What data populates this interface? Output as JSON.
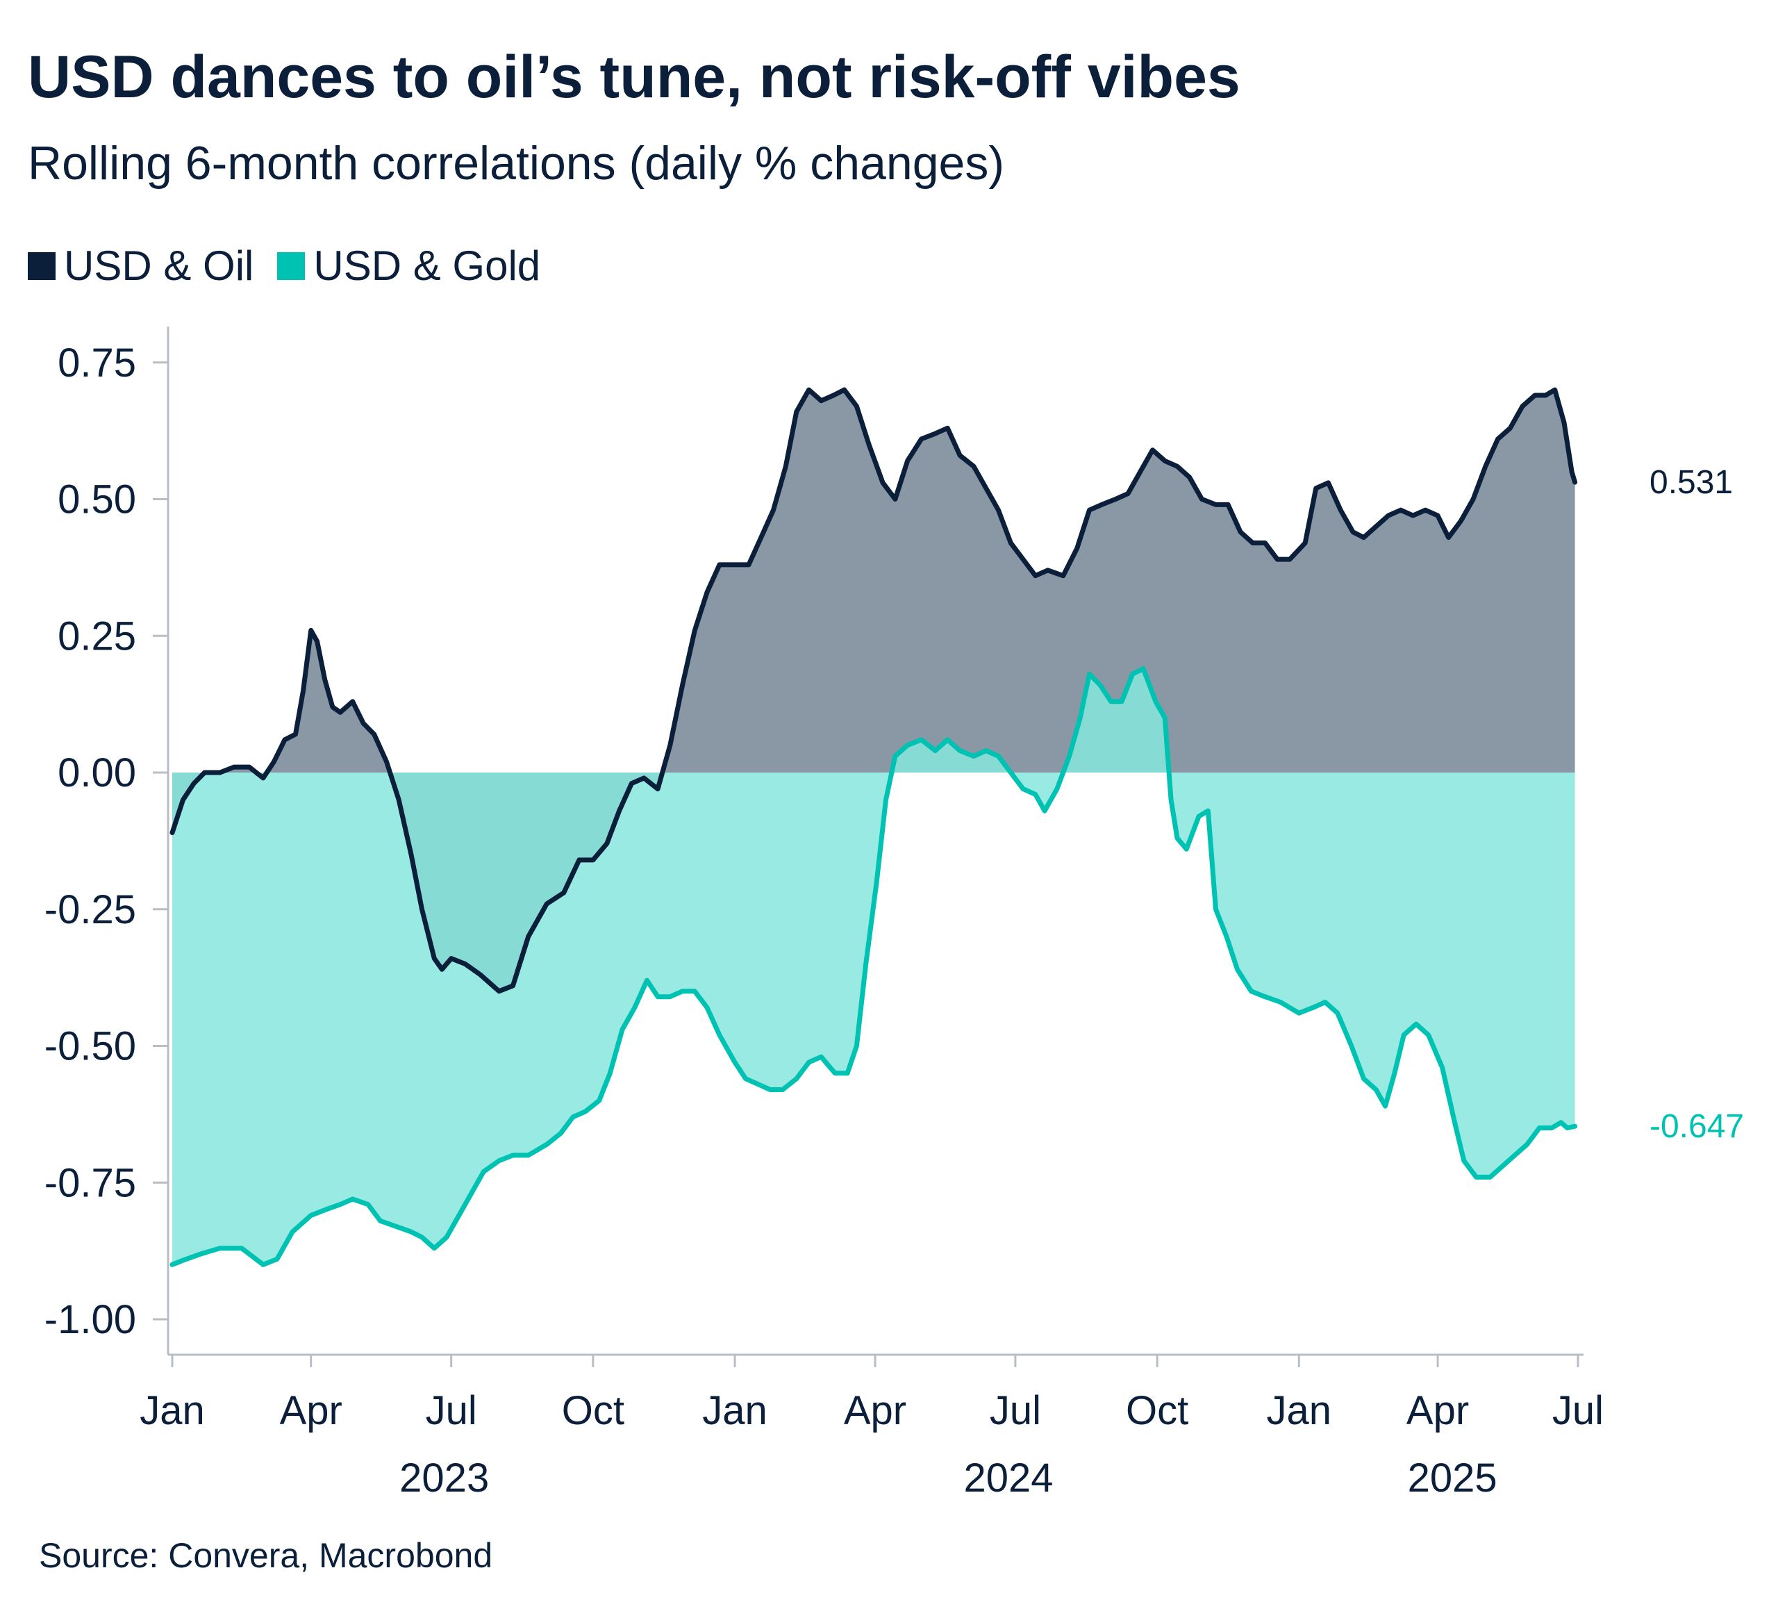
{
  "title": "USD dances to oil’s tune, not risk-off vibes",
  "subtitle": "Rolling 6-month correlations (daily % changes)",
  "source": "Source: Convera, Macrobond",
  "legend": [
    {
      "name": "USD & Oil",
      "color": "#0b1f3a"
    },
    {
      "name": "USD & Gold",
      "color": "#00c2b2"
    }
  ],
  "chart_data": {
    "type": "area",
    "title": "USD dances to oil’s tune, not risk-off vibes",
    "subtitle": "Rolling 6-month correlations (daily % changes)",
    "xlabel": "",
    "ylabel": "",
    "ylim": [
      -1.05,
      0.78
    ],
    "yticks": [
      0.75,
      0.5,
      0.25,
      0.0,
      -0.25,
      -0.5,
      -0.75,
      -1.0
    ],
    "ytick_labels": [
      "0.75",
      "0.50",
      "0.25",
      "0.00",
      "-0.25",
      "-0.50",
      "-0.75",
      "-1.00"
    ],
    "xlim": [
      "2023-01-01",
      "2025-07-01"
    ],
    "xticks": [
      {
        "date": "2023-01-01",
        "label": "Jan"
      },
      {
        "date": "2023-04-01",
        "label": "Apr"
      },
      {
        "date": "2023-07-01",
        "label": "Jul"
      },
      {
        "date": "2023-10-01",
        "label": "Oct"
      },
      {
        "date": "2024-01-01",
        "label": "Jan"
      },
      {
        "date": "2024-04-01",
        "label": "Apr"
      },
      {
        "date": "2024-07-01",
        "label": "Jul"
      },
      {
        "date": "2024-10-01",
        "label": "Oct"
      },
      {
        "date": "2025-01-01",
        "label": "Jan"
      },
      {
        "date": "2025-04-01",
        "label": "Apr"
      },
      {
        "date": "2025-07-01",
        "label": "Jul"
      }
    ],
    "year_labels": [
      {
        "date": "2023-07-01",
        "label": "2023"
      },
      {
        "date": "2024-07-01",
        "label": "2024"
      },
      {
        "date": "2025-04-15",
        "label": "2025"
      }
    ],
    "grid": false,
    "legend_position": "top-left",
    "series": [
      {
        "name": "USD & Oil",
        "color": "#0b1f3a",
        "fill": "#8a97a5",
        "end_label": "0.531",
        "points": [
          [
            "2023-01-01",
            -0.11
          ],
          [
            "2023-01-08",
            -0.05
          ],
          [
            "2023-01-15",
            -0.02
          ],
          [
            "2023-01-22",
            0.0
          ],
          [
            "2023-02-01",
            0.0
          ],
          [
            "2023-02-10",
            0.01
          ],
          [
            "2023-02-20",
            0.01
          ],
          [
            "2023-03-01",
            -0.01
          ],
          [
            "2023-03-08",
            0.02
          ],
          [
            "2023-03-15",
            0.06
          ],
          [
            "2023-03-22",
            0.07
          ],
          [
            "2023-03-27",
            0.15
          ],
          [
            "2023-04-01",
            0.26
          ],
          [
            "2023-04-05",
            0.24
          ],
          [
            "2023-04-10",
            0.17
          ],
          [
            "2023-04-15",
            0.12
          ],
          [
            "2023-04-20",
            0.11
          ],
          [
            "2023-04-28",
            0.13
          ],
          [
            "2023-05-05",
            0.09
          ],
          [
            "2023-05-12",
            0.07
          ],
          [
            "2023-05-20",
            0.02
          ],
          [
            "2023-05-28",
            -0.05
          ],
          [
            "2023-06-05",
            -0.15
          ],
          [
            "2023-06-12",
            -0.25
          ],
          [
            "2023-06-20",
            -0.34
          ],
          [
            "2023-06-25",
            -0.36
          ],
          [
            "2023-07-01",
            -0.34
          ],
          [
            "2023-07-10",
            -0.35
          ],
          [
            "2023-07-20",
            -0.37
          ],
          [
            "2023-08-01",
            -0.4
          ],
          [
            "2023-08-10",
            -0.39
          ],
          [
            "2023-08-20",
            -0.3
          ],
          [
            "2023-09-01",
            -0.24
          ],
          [
            "2023-09-12",
            -0.22
          ],
          [
            "2023-09-22",
            -0.16
          ],
          [
            "2023-10-01",
            -0.16
          ],
          [
            "2023-10-10",
            -0.13
          ],
          [
            "2023-10-18",
            -0.07
          ],
          [
            "2023-10-26",
            -0.02
          ],
          [
            "2023-11-03",
            -0.01
          ],
          [
            "2023-11-12",
            -0.03
          ],
          [
            "2023-11-20",
            0.05
          ],
          [
            "2023-11-28",
            0.16
          ],
          [
            "2023-12-06",
            0.26
          ],
          [
            "2023-12-14",
            0.33
          ],
          [
            "2023-12-22",
            0.38
          ],
          [
            "2024-01-01",
            0.38
          ],
          [
            "2024-01-10",
            0.38
          ],
          [
            "2024-01-18",
            0.43
          ],
          [
            "2024-01-26",
            0.48
          ],
          [
            "2024-02-03",
            0.56
          ],
          [
            "2024-02-10",
            0.66
          ],
          [
            "2024-02-18",
            0.7
          ],
          [
            "2024-02-26",
            0.68
          ],
          [
            "2024-03-05",
            0.69
          ],
          [
            "2024-03-12",
            0.7
          ],
          [
            "2024-03-20",
            0.67
          ],
          [
            "2024-03-28",
            0.6
          ],
          [
            "2024-04-06",
            0.53
          ],
          [
            "2024-04-14",
            0.5
          ],
          [
            "2024-04-22",
            0.57
          ],
          [
            "2024-05-01",
            0.61
          ],
          [
            "2024-05-10",
            0.62
          ],
          [
            "2024-05-18",
            0.63
          ],
          [
            "2024-05-26",
            0.58
          ],
          [
            "2024-06-04",
            0.56
          ],
          [
            "2024-06-12",
            0.52
          ],
          [
            "2024-06-20",
            0.48
          ],
          [
            "2024-06-28",
            0.42
          ],
          [
            "2024-07-06",
            0.39
          ],
          [
            "2024-07-14",
            0.36
          ],
          [
            "2024-07-22",
            0.37
          ],
          [
            "2024-08-01",
            0.36
          ],
          [
            "2024-08-10",
            0.41
          ],
          [
            "2024-08-18",
            0.48
          ],
          [
            "2024-08-26",
            0.49
          ],
          [
            "2024-09-04",
            0.5
          ],
          [
            "2024-09-12",
            0.51
          ],
          [
            "2024-09-20",
            0.55
          ],
          [
            "2024-09-28",
            0.59
          ],
          [
            "2024-10-06",
            0.57
          ],
          [
            "2024-10-14",
            0.56
          ],
          [
            "2024-10-22",
            0.54
          ],
          [
            "2024-10-30",
            0.5
          ],
          [
            "2024-11-08",
            0.49
          ],
          [
            "2024-11-16",
            0.49
          ],
          [
            "2024-11-24",
            0.44
          ],
          [
            "2024-12-02",
            0.42
          ],
          [
            "2024-12-10",
            0.42
          ],
          [
            "2024-12-18",
            0.39
          ],
          [
            "2024-12-26",
            0.39
          ],
          [
            "2025-01-05",
            0.42
          ],
          [
            "2025-01-12",
            0.52
          ],
          [
            "2025-01-20",
            0.53
          ],
          [
            "2025-01-28",
            0.48
          ],
          [
            "2025-02-05",
            0.44
          ],
          [
            "2025-02-12",
            0.43
          ],
          [
            "2025-02-20",
            0.45
          ],
          [
            "2025-02-28",
            0.47
          ],
          [
            "2025-03-08",
            0.48
          ],
          [
            "2025-03-16",
            0.47
          ],
          [
            "2025-03-24",
            0.48
          ],
          [
            "2025-04-01",
            0.47
          ],
          [
            "2025-04-08",
            0.43
          ],
          [
            "2025-04-16",
            0.46
          ],
          [
            "2025-04-24",
            0.5
          ],
          [
            "2025-05-02",
            0.56
          ],
          [
            "2025-05-10",
            0.61
          ],
          [
            "2025-05-18",
            0.63
          ],
          [
            "2025-05-26",
            0.67
          ],
          [
            "2025-06-03",
            0.69
          ],
          [
            "2025-06-10",
            0.69
          ],
          [
            "2025-06-16",
            0.7
          ],
          [
            "2025-06-22",
            0.64
          ],
          [
            "2025-06-27",
            0.55
          ],
          [
            "2025-06-29",
            0.531
          ]
        ]
      },
      {
        "name": "USD & Gold",
        "color": "#00c2b2",
        "fill": "#86e6dd",
        "end_label": "-0.647",
        "points": [
          [
            "2023-01-01",
            -0.9
          ],
          [
            "2023-01-10",
            -0.89
          ],
          [
            "2023-01-20",
            -0.88
          ],
          [
            "2023-02-01",
            -0.87
          ],
          [
            "2023-02-15",
            -0.87
          ],
          [
            "2023-03-01",
            -0.9
          ],
          [
            "2023-03-10",
            -0.89
          ],
          [
            "2023-03-20",
            -0.84
          ],
          [
            "2023-04-01",
            -0.81
          ],
          [
            "2023-04-10",
            -0.8
          ],
          [
            "2023-04-20",
            -0.79
          ],
          [
            "2023-04-28",
            -0.78
          ],
          [
            "2023-05-08",
            -0.79
          ],
          [
            "2023-05-16",
            -0.82
          ],
          [
            "2023-05-26",
            -0.83
          ],
          [
            "2023-06-05",
            -0.84
          ],
          [
            "2023-06-12",
            -0.85
          ],
          [
            "2023-06-20",
            -0.87
          ],
          [
            "2023-06-28",
            -0.85
          ],
          [
            "2023-07-06",
            -0.81
          ],
          [
            "2023-07-14",
            -0.77
          ],
          [
            "2023-07-22",
            -0.73
          ],
          [
            "2023-08-01",
            -0.71
          ],
          [
            "2023-08-10",
            -0.7
          ],
          [
            "2023-08-20",
            -0.7
          ],
          [
            "2023-09-01",
            -0.68
          ],
          [
            "2023-09-10",
            -0.66
          ],
          [
            "2023-09-18",
            -0.63
          ],
          [
            "2023-09-26",
            -0.62
          ],
          [
            "2023-10-05",
            -0.6
          ],
          [
            "2023-10-12",
            -0.55
          ],
          [
            "2023-10-20",
            -0.47
          ],
          [
            "2023-10-28",
            -0.43
          ],
          [
            "2023-11-05",
            -0.38
          ],
          [
            "2023-11-12",
            -0.41
          ],
          [
            "2023-11-20",
            -0.41
          ],
          [
            "2023-11-28",
            -0.4
          ],
          [
            "2023-12-06",
            -0.4
          ],
          [
            "2023-12-14",
            -0.43
          ],
          [
            "2023-12-22",
            -0.48
          ],
          [
            "2024-01-01",
            -0.53
          ],
          [
            "2024-01-08",
            -0.56
          ],
          [
            "2024-01-16",
            -0.57
          ],
          [
            "2024-01-24",
            -0.58
          ],
          [
            "2024-02-01",
            -0.58
          ],
          [
            "2024-02-10",
            -0.56
          ],
          [
            "2024-02-18",
            -0.53
          ],
          [
            "2024-02-26",
            -0.52
          ],
          [
            "2024-03-06",
            -0.55
          ],
          [
            "2024-03-14",
            -0.55
          ],
          [
            "2024-03-20",
            -0.5
          ],
          [
            "2024-03-26",
            -0.35
          ],
          [
            "2024-04-02",
            -0.2
          ],
          [
            "2024-04-08",
            -0.05
          ],
          [
            "2024-04-14",
            0.03
          ],
          [
            "2024-04-22",
            0.05
          ],
          [
            "2024-05-01",
            0.06
          ],
          [
            "2024-05-10",
            0.04
          ],
          [
            "2024-05-18",
            0.06
          ],
          [
            "2024-05-26",
            0.04
          ],
          [
            "2024-06-04",
            0.03
          ],
          [
            "2024-06-12",
            0.04
          ],
          [
            "2024-06-20",
            0.03
          ],
          [
            "2024-06-28",
            0.0
          ],
          [
            "2024-07-06",
            -0.03
          ],
          [
            "2024-07-14",
            -0.04
          ],
          [
            "2024-07-20",
            -0.07
          ],
          [
            "2024-07-28",
            -0.03
          ],
          [
            "2024-08-05",
            0.03
          ],
          [
            "2024-08-12",
            0.1
          ],
          [
            "2024-08-18",
            0.18
          ],
          [
            "2024-08-25",
            0.16
          ],
          [
            "2024-09-01",
            0.13
          ],
          [
            "2024-09-08",
            0.13
          ],
          [
            "2024-09-15",
            0.18
          ],
          [
            "2024-09-22",
            0.19
          ],
          [
            "2024-09-30",
            0.13
          ],
          [
            "2024-10-06",
            0.1
          ],
          [
            "2024-10-10",
            -0.05
          ],
          [
            "2024-10-14",
            -0.12
          ],
          [
            "2024-10-20",
            -0.14
          ],
          [
            "2024-10-28",
            -0.08
          ],
          [
            "2024-11-03",
            -0.07
          ],
          [
            "2024-11-08",
            -0.25
          ],
          [
            "2024-11-15",
            -0.3
          ],
          [
            "2024-11-22",
            -0.36
          ],
          [
            "2024-12-01",
            -0.4
          ],
          [
            "2024-12-10",
            -0.41
          ],
          [
            "2024-12-20",
            -0.42
          ],
          [
            "2025-01-01",
            -0.44
          ],
          [
            "2025-01-10",
            -0.43
          ],
          [
            "2025-01-18",
            -0.42
          ],
          [
            "2025-01-26",
            -0.44
          ],
          [
            "2025-02-04",
            -0.5
          ],
          [
            "2025-02-12",
            -0.56
          ],
          [
            "2025-02-20",
            -0.58
          ],
          [
            "2025-02-26",
            -0.61
          ],
          [
            "2025-03-04",
            -0.55
          ],
          [
            "2025-03-10",
            -0.48
          ],
          [
            "2025-03-18",
            -0.46
          ],
          [
            "2025-03-26",
            -0.48
          ],
          [
            "2025-04-04",
            -0.54
          ],
          [
            "2025-04-12",
            -0.64
          ],
          [
            "2025-04-18",
            -0.71
          ],
          [
            "2025-04-26",
            -0.74
          ],
          [
            "2025-05-05",
            -0.74
          ],
          [
            "2025-05-13",
            -0.72
          ],
          [
            "2025-05-21",
            -0.7
          ],
          [
            "2025-05-29",
            -0.68
          ],
          [
            "2025-06-06",
            -0.65
          ],
          [
            "2025-06-14",
            -0.65
          ],
          [
            "2025-06-20",
            -0.64
          ],
          [
            "2025-06-24",
            -0.65
          ],
          [
            "2025-06-29",
            -0.647
          ]
        ]
      }
    ]
  }
}
